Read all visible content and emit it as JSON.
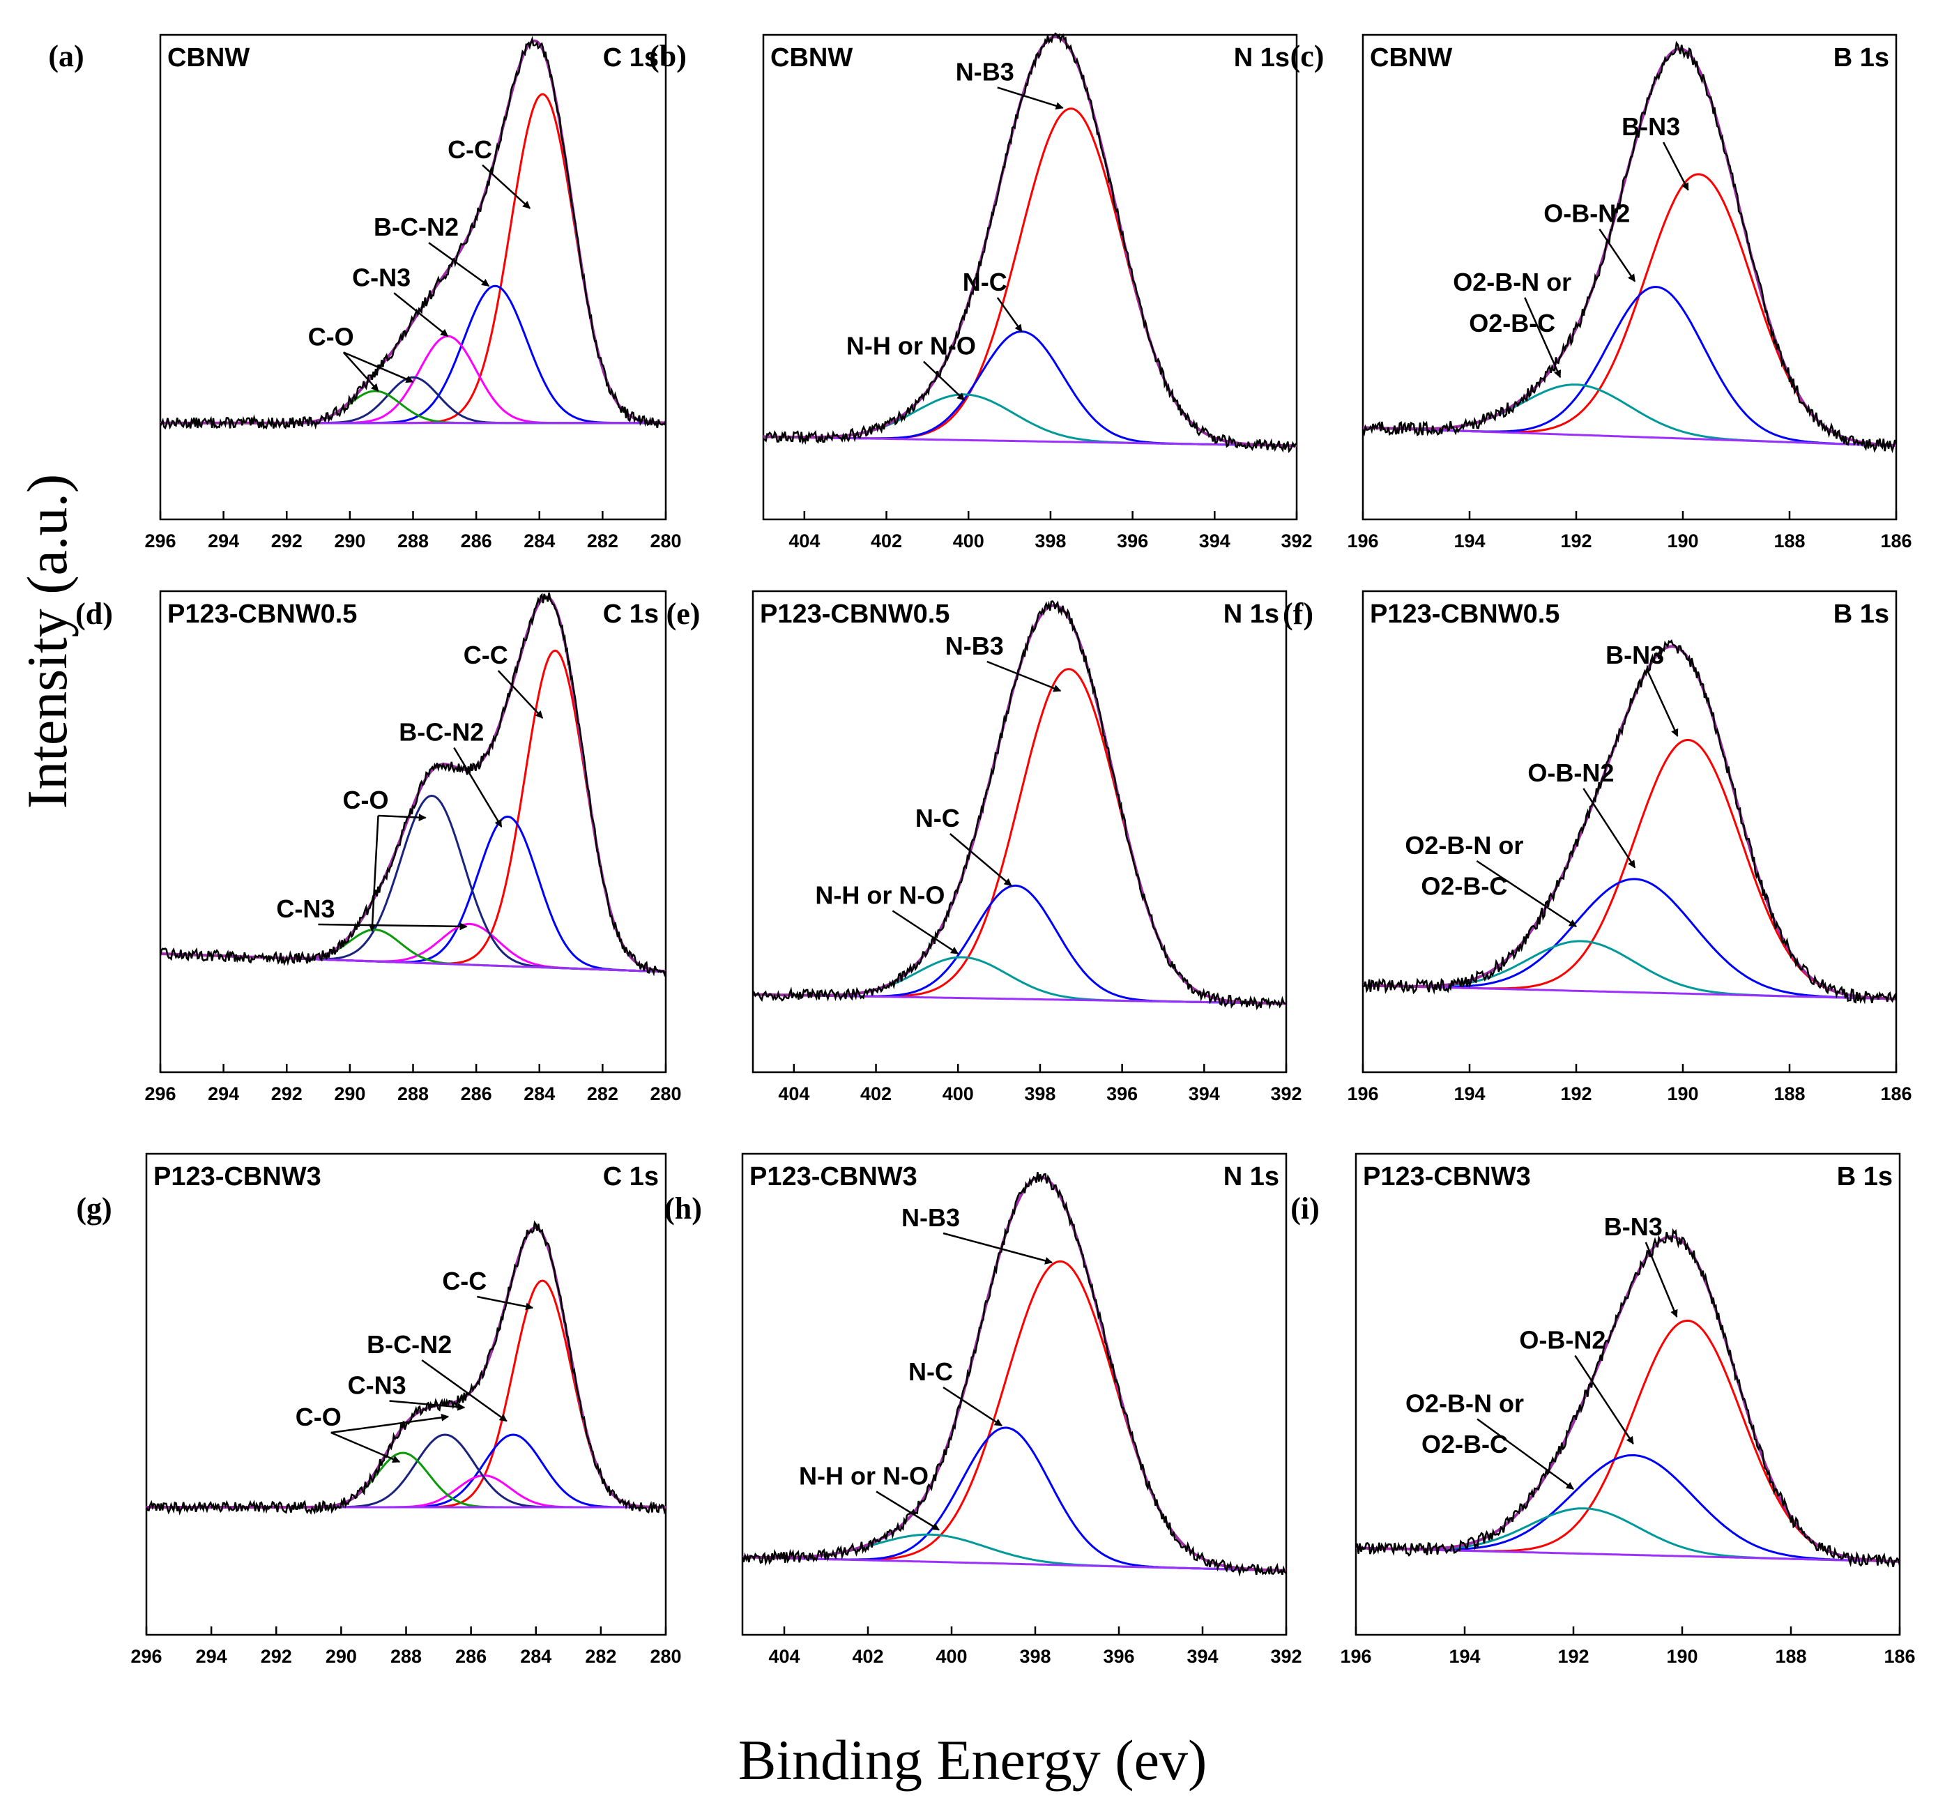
{
  "figure": {
    "ylabel": "Intensity (a.u.)",
    "xlabel": "Binding Energy (ev)"
  },
  "colors": {
    "raw": "#000000",
    "envelope": "#a02ca8",
    "background": "#9b30ff",
    "red": "#ff0000",
    "blue": "#0000ff",
    "magenta": "#ff00ff",
    "navy": "#1a237e",
    "green": "#0a9a0a",
    "teal": "#00999a"
  },
  "chart_data": [
    {
      "type": "line",
      "panel": "(a)",
      "sample": "CBNW",
      "core": "C 1s",
      "xlim": [
        296,
        280
      ],
      "xticks": [
        "296",
        "294",
        "292",
        "290",
        "288",
        "286",
        "284",
        "282",
        "280"
      ],
      "baseline": 0.15,
      "slope": 0,
      "noise": 0.012,
      "peaks": [
        {
          "name": "C-C",
          "center": 283.9,
          "height": 0.72,
          "sigma": 1.0,
          "color": "red"
        },
        {
          "name": "B-C-N2",
          "center": 285.4,
          "height": 0.3,
          "sigma": 1.0,
          "color": "blue"
        },
        {
          "name": "C-N3",
          "center": 286.9,
          "height": 0.19,
          "sigma": 0.9,
          "color": "magenta"
        },
        {
          "name": "C-O",
          "center": 288.0,
          "height": 0.1,
          "sigma": 0.8,
          "color": "navy"
        },
        {
          "name": "C-O",
          "center": 289.2,
          "height": 0.07,
          "sigma": 0.8,
          "color": "green"
        }
      ],
      "annotations": [
        {
          "text": "C-C",
          "x": 286.2,
          "y": 0.73,
          "targets": [
            [
              284.3,
              0.62
            ]
          ]
        },
        {
          "text": "B-C-N2",
          "x": 287.9,
          "y": 0.56,
          "targets": [
            [
              285.6,
              0.45
            ]
          ]
        },
        {
          "text": "C-N3",
          "x": 289.0,
          "y": 0.45,
          "targets": [
            [
              286.9,
              0.34
            ]
          ]
        },
        {
          "text": "C-O",
          "x": 290.6,
          "y": 0.32,
          "targets": [
            [
              289.1,
              0.22
            ],
            [
              288.0,
              0.24
            ]
          ]
        }
      ]
    },
    {
      "type": "line",
      "panel": "(b)",
      "sample": "CBNW",
      "core": "N 1s",
      "xlim": [
        405,
        392
      ],
      "xticks": [
        "404",
        "402",
        "400",
        "398",
        "396",
        "394",
        "392"
      ],
      "baseline": 0.1,
      "slope": 0.02,
      "noise": 0.012,
      "peaks": [
        {
          "name": "N-B3",
          "center": 397.5,
          "height": 0.73,
          "sigma": 1.25,
          "color": "red"
        },
        {
          "name": "N-C",
          "center": 398.7,
          "height": 0.24,
          "sigma": 1.0,
          "color": "blue"
        },
        {
          "name": "N-H or N-O",
          "center": 400.1,
          "height": 0.1,
          "sigma": 1.2,
          "color": "teal"
        }
      ],
      "annotations": [
        {
          "text": "N-B3",
          "x": 399.6,
          "y": 0.9,
          "targets": [
            [
              397.7,
              0.84
            ]
          ]
        },
        {
          "text": "N-C",
          "x": 399.6,
          "y": 0.44,
          "targets": [
            [
              398.7,
              0.35
            ]
          ]
        },
        {
          "text": "N-H or N-O",
          "x": 401.4,
          "y": 0.3,
          "targets": [
            [
              400.1,
              0.2
            ]
          ]
        }
      ]
    },
    {
      "type": "line",
      "panel": "(c)",
      "sample": "CBNW",
      "core": "B 1s",
      "xlim": [
        196,
        186
      ],
      "xticks": [
        "196",
        "194",
        "192",
        "190",
        "188",
        "186"
      ],
      "baseline": 0.1,
      "slope": 0.04,
      "noise": 0.014,
      "peaks": [
        {
          "name": "B-N3",
          "center": 189.7,
          "height": 0.58,
          "sigma": 1.0,
          "color": "red"
        },
        {
          "name": "O-B-N2",
          "center": 190.5,
          "height": 0.33,
          "sigma": 0.9,
          "color": "blue"
        },
        {
          "name": "O2-B-N or O2-B-C",
          "center": 192.0,
          "height": 0.11,
          "sigma": 1.0,
          "color": "teal"
        }
      ],
      "annotations": [
        {
          "text": "B-N3",
          "x": 190.6,
          "y": 0.78,
          "targets": [
            [
              189.9,
              0.66
            ]
          ]
        },
        {
          "text": "O-B-N2",
          "x": 191.8,
          "y": 0.59,
          "targets": [
            [
              190.9,
              0.46
            ]
          ]
        },
        {
          "text": "O2-B-N or",
          "x": 193.2,
          "y": 0.44,
          "targets": [
            [
              192.3,
              0.25
            ]
          ]
        },
        {
          "text": "O2-B-C",
          "x": 193.2,
          "y": 0.35,
          "targets": []
        }
      ]
    },
    {
      "type": "line",
      "panel": "(d)",
      "sample": "P123-CBNW0.5",
      "core": "C 1s",
      "xlim": [
        296,
        280
      ],
      "xticks": [
        "296",
        "294",
        "292",
        "290",
        "288",
        "286",
        "284",
        "282",
        "280"
      ],
      "baseline": 0.16,
      "slope": 0.04,
      "noise": 0.012,
      "peaks": [
        {
          "name": "C-C",
          "center": 283.5,
          "height": 0.7,
          "sigma": 0.95,
          "color": "red"
        },
        {
          "name": "B-C-N2",
          "center": 285.0,
          "height": 0.33,
          "sigma": 0.95,
          "color": "blue"
        },
        {
          "name": "C-N3",
          "center": 286.2,
          "height": 0.09,
          "sigma": 0.9,
          "color": "magenta"
        },
        {
          "name": "C-O",
          "center": 287.4,
          "height": 0.37,
          "sigma": 1.0,
          "color": "navy"
        },
        {
          "name": "C-O",
          "center": 289.2,
          "height": 0.07,
          "sigma": 0.8,
          "color": "green"
        }
      ],
      "annotations": [
        {
          "text": "C-C",
          "x": 285.7,
          "y": 0.84,
          "targets": [
            [
              283.9,
              0.72
            ]
          ]
        },
        {
          "text": "B-C-N2",
          "x": 287.1,
          "y": 0.67,
          "targets": [
            [
              285.2,
              0.48
            ]
          ]
        },
        {
          "text": "C-O",
          "x": 289.5,
          "y": 0.52,
          "targets": [
            [
              287.6,
              0.5
            ],
            [
              289.3,
              0.25
            ]
          ]
        },
        {
          "text": "C-N3",
          "x": 291.4,
          "y": 0.28,
          "targets": [
            [
              286.3,
              0.26
            ]
          ]
        }
      ]
    },
    {
      "type": "line",
      "panel": "(e)",
      "sample": "P123-CBNW0.5",
      "core": "N 1s",
      "xlim": [
        405,
        392
      ],
      "xticks": [
        "404",
        "402",
        "400",
        "398",
        "396",
        "394",
        "392"
      ],
      "baseline": 0.09,
      "slope": 0.02,
      "noise": 0.012,
      "peaks": [
        {
          "name": "N-B3",
          "center": 397.3,
          "height": 0.73,
          "sigma": 1.2,
          "color": "red"
        },
        {
          "name": "N-C",
          "center": 398.6,
          "height": 0.25,
          "sigma": 1.0,
          "color": "blue"
        },
        {
          "name": "N-H or N-O",
          "center": 399.9,
          "height": 0.09,
          "sigma": 1.1,
          "color": "teal"
        }
      ],
      "annotations": [
        {
          "text": "N-B3",
          "x": 399.6,
          "y": 0.86,
          "targets": [
            [
              397.5,
              0.78
            ]
          ]
        },
        {
          "text": "N-C",
          "x": 400.5,
          "y": 0.48,
          "targets": [
            [
              398.7,
              0.35
            ]
          ]
        },
        {
          "text": "N-H or N-O",
          "x": 401.9,
          "y": 0.31,
          "targets": [
            [
              400.0,
              0.2
            ]
          ]
        }
      ]
    },
    {
      "type": "line",
      "panel": "(f)",
      "sample": "P123-CBNW0.5",
      "core": "B 1s",
      "xlim": [
        196,
        186
      ],
      "xticks": [
        "196",
        "194",
        "192",
        "190",
        "188",
        "186"
      ],
      "baseline": 0.1,
      "slope": 0.03,
      "noise": 0.014,
      "peaks": [
        {
          "name": "B-N3",
          "center": 189.9,
          "height": 0.56,
          "sigma": 1.0,
          "color": "red"
        },
        {
          "name": "O-B-N2",
          "center": 190.9,
          "height": 0.25,
          "sigma": 1.1,
          "color": "blue"
        },
        {
          "name": "O2-B-N or O2-B-C",
          "center": 191.9,
          "height": 0.11,
          "sigma": 1.0,
          "color": "teal"
        }
      ],
      "annotations": [
        {
          "text": "B-N3",
          "x": 190.9,
          "y": 0.84,
          "targets": [
            [
              190.1,
              0.68
            ]
          ]
        },
        {
          "text": "O-B-N2",
          "x": 192.1,
          "y": 0.58,
          "targets": [
            [
              190.9,
              0.39
            ]
          ]
        },
        {
          "text": "O2-B-N or",
          "x": 194.1,
          "y": 0.42,
          "targets": [
            [
              192.0,
              0.26
            ]
          ]
        },
        {
          "text": "O2-B-C",
          "x": 194.1,
          "y": 0.33,
          "targets": []
        }
      ]
    },
    {
      "type": "line",
      "panel": "(g)",
      "sample": "P123-CBNW3",
      "core": "C 1s",
      "xlim": [
        296,
        280
      ],
      "xticks": [
        "296",
        "294",
        "292",
        "290",
        "288",
        "286",
        "284",
        "282",
        "280"
      ],
      "baseline": 0.22,
      "slope": 0,
      "noise": 0.012,
      "peaks": [
        {
          "name": "C-C",
          "center": 283.8,
          "height": 0.5,
          "sigma": 0.9,
          "color": "red"
        },
        {
          "name": "B-C-N2",
          "center": 284.7,
          "height": 0.16,
          "sigma": 0.9,
          "color": "blue"
        },
        {
          "name": "C-N3",
          "center": 285.6,
          "height": 0.07,
          "sigma": 0.8,
          "color": "magenta"
        },
        {
          "name": "C-O",
          "center": 286.8,
          "height": 0.16,
          "sigma": 0.9,
          "color": "navy"
        },
        {
          "name": "C-O",
          "center": 288.1,
          "height": 0.12,
          "sigma": 0.8,
          "color": "green"
        }
      ],
      "annotations": [
        {
          "text": "C-C",
          "x": 286.2,
          "y": 0.7,
          "targets": [
            [
              284.1,
              0.66
            ]
          ]
        },
        {
          "text": "B-C-N2",
          "x": 287.9,
          "y": 0.56,
          "targets": [
            [
              284.9,
              0.41
            ]
          ]
        },
        {
          "text": "C-N3",
          "x": 288.9,
          "y": 0.47,
          "targets": [
            [
              286.2,
              0.44
            ]
          ]
        },
        {
          "text": "C-O",
          "x": 290.7,
          "y": 0.4,
          "targets": [
            [
              286.7,
              0.42
            ],
            [
              288.2,
              0.32
            ]
          ]
        }
      ]
    },
    {
      "type": "line",
      "panel": "(h)",
      "sample": "P123-CBNW3",
      "core": "N 1s",
      "xlim": [
        405,
        392
      ],
      "xticks": [
        "404",
        "402",
        "400",
        "398",
        "396",
        "394",
        "392"
      ],
      "baseline": 0.08,
      "slope": 0.03,
      "noise": 0.012,
      "peaks": [
        {
          "name": "N-B3",
          "center": 397.4,
          "height": 0.67,
          "sigma": 1.3,
          "color": "red"
        },
        {
          "name": "N-C",
          "center": 398.7,
          "height": 0.3,
          "sigma": 1.05,
          "color": "blue"
        },
        {
          "name": "N-H or N-O",
          "center": 400.5,
          "height": 0.06,
          "sigma": 1.3,
          "color": "teal"
        }
      ],
      "annotations": [
        {
          "text": "N-B3",
          "x": 400.5,
          "y": 0.84,
          "targets": [
            [
              397.6,
              0.76
            ]
          ]
        },
        {
          "text": "N-C",
          "x": 400.5,
          "y": 0.5,
          "targets": [
            [
              398.8,
              0.4
            ]
          ]
        },
        {
          "text": "N-H or N-O",
          "x": 402.1,
          "y": 0.27,
          "targets": [
            [
              400.3,
              0.17
            ]
          ]
        }
      ]
    },
    {
      "type": "line",
      "panel": "(i)",
      "sample": "P123-CBNW3",
      "core": "B 1s",
      "xlim": [
        196,
        186
      ],
      "xticks": [
        "196",
        "194",
        "192",
        "190",
        "188",
        "186"
      ],
      "baseline": 0.1,
      "slope": 0.03,
      "noise": 0.014,
      "peaks": [
        {
          "name": "B-N3",
          "center": 189.9,
          "height": 0.52,
          "sigma": 1.0,
          "color": "red"
        },
        {
          "name": "O-B-N2",
          "center": 190.9,
          "height": 0.22,
          "sigma": 1.1,
          "color": "blue"
        },
        {
          "name": "O2-B-N or O2-B-C",
          "center": 191.8,
          "height": 0.1,
          "sigma": 1.0,
          "color": "teal"
        }
      ],
      "annotations": [
        {
          "text": "B-N3",
          "x": 190.9,
          "y": 0.82,
          "targets": [
            [
              190.1,
              0.64
            ]
          ]
        },
        {
          "text": "O-B-N2",
          "x": 192.2,
          "y": 0.57,
          "targets": [
            [
              190.9,
              0.36
            ]
          ]
        },
        {
          "text": "O2-B-N or",
          "x": 194.0,
          "y": 0.43,
          "targets": [
            [
              192.0,
              0.26
            ]
          ]
        },
        {
          "text": "O2-B-C",
          "x": 194.0,
          "y": 0.34,
          "targets": []
        }
      ]
    }
  ]
}
